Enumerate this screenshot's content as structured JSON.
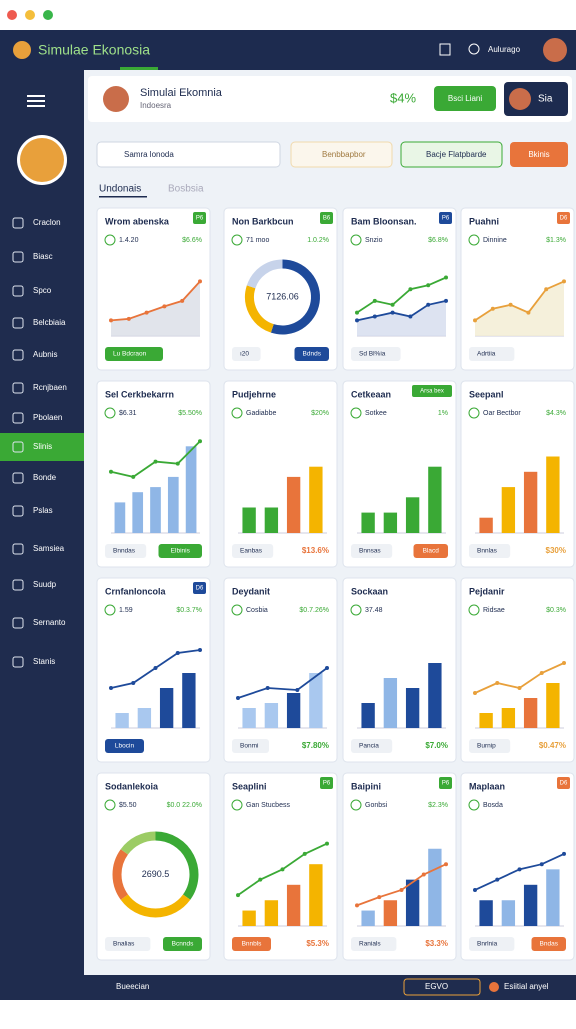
{
  "window": {
    "title": "Simulae Ekonosia",
    "user": "Aulurago"
  },
  "sidebar": {
    "items": [
      "Craclon",
      "Biasc",
      "Spco",
      "Belcbiaia",
      "Aubnis",
      "Rcnjbaen",
      "Pbolaen",
      "Slinis",
      "Bonde",
      "Pslas",
      "Samsiea",
      "Suudp",
      "Sernanto",
      "Stanis"
    ],
    "active": 7
  },
  "header": {
    "title": "Simulai Ekomnia",
    "subtitle": "Indoesra",
    "stat": "$4%",
    "button": "Bsci Liani",
    "user": "Sia"
  },
  "toolbar": {
    "search": "Samra lonoda",
    "filter": "Benbbapbor",
    "action": "Bacje Flatpbarde",
    "action2": "Bkinis"
  },
  "tabs": [
    "Undonais",
    "Bosbsia"
  ],
  "cards": [
    {
      "title": "Wrom abenska",
      "badge": "P6",
      "badge_color": "#3aa935",
      "stat": "1.4.20",
      "stat2": "$6.6%",
      "chart": {
        "ylim": [
          0,
          100
        ],
        "series": [
          {
            "type": "line",
            "color": "#e8743b",
            "area": "#d9dde6",
            "values": [
              20,
              22,
              30,
              38,
              45,
              70
            ]
          }
        ]
      },
      "tag": "Lu Bdcraon",
      "tag_color": "#3aa935"
    },
    {
      "title": "Non Barkbcun",
      "badge": "B6",
      "badge_color": "#3aa935",
      "stat": "71 moo",
      "stat2": "1.0.2%",
      "chart": {
        "type": "donut",
        "center": "7126.06",
        "values": [
          55,
          25,
          20
        ],
        "colors": [
          "#1e4a9a",
          "#f4b400",
          "#c7d3ea"
        ]
      },
      "tag": "ı20",
      "button": "Bdnds",
      "button_color": "#1e4a9a"
    },
    {
      "title": "Bam Bloonsan.",
      "badge": "P6",
      "badge_color": "#1e4a9a",
      "stat": "Snzio",
      "stat2": "$6.8%",
      "chart": {
        "ylim": [
          0,
          100
        ],
        "series": [
          {
            "type": "line",
            "color": "#3aa935",
            "values": [
              30,
              45,
              40,
              60,
              65,
              75
            ]
          },
          {
            "type": "line",
            "color": "#1e4a9a",
            "area": "#d5dcee",
            "values": [
              20,
              25,
              30,
              25,
              40,
              45
            ]
          }
        ]
      },
      "tag": "Sd Bl%ia"
    },
    {
      "title": "Puahni",
      "badge": "D6",
      "badge_color": "#e8743b",
      "stat": "Dinnine",
      "stat2": "$1.3%",
      "chart": {
        "ylim": [
          0,
          100
        ],
        "series": [
          {
            "type": "line",
            "color": "#e8a03b",
            "area": "#f3ecd2",
            "values": [
              20,
              35,
              40,
              30,
              60,
              70
            ]
          }
        ]
      },
      "tag": "Adrtiia"
    },
    {
      "title": "Sel Cerkbekarrn",
      "stat": "$6.31",
      "stat2": "$5.50%",
      "chart": {
        "ylim": [
          0,
          100
        ],
        "series": [
          {
            "type": "bar",
            "colors": [
              "#8fb6e6",
              "#8fb6e6",
              "#8fb6e6",
              "#8fb6e6",
              "#8fb6e6"
            ],
            "values": [
              30,
              40,
              45,
              55,
              85
            ]
          },
          {
            "type": "line",
            "color": "#3aa935",
            "values": [
              60,
              55,
              70,
              68,
              90
            ]
          }
        ]
      },
      "tag": "Bnndas",
      "button": "Elbinis",
      "button_color": "#3aa935"
    },
    {
      "title": "Pudjehrne",
      "stat": "Gadiabbe",
      "stat2": "$20%",
      "chart": {
        "ylim": [
          0,
          100
        ],
        "series": [
          {
            "type": "bar",
            "colors": [
              "#3aa935",
              "#3aa935",
              "#e8743b",
              "#f4b400"
            ],
            "values": [
              25,
              25,
              55,
              65
            ]
          }
        ]
      },
      "tag": "Eanbas",
      "note": "$13.6%",
      "note_color": "#e8743b"
    },
    {
      "title": "Cetkeaan",
      "badge": "Arsa bex",
      "badge_color": "#3aa935",
      "stat": "Sotkee",
      "stat2": "1%",
      "chart": {
        "ylim": [
          0,
          100
        ],
        "series": [
          {
            "type": "bar",
            "colors": [
              "#3aa935",
              "#3aa935",
              "#3aa935",
              "#3aa935"
            ],
            "values": [
              20,
              20,
              35,
              65
            ]
          }
        ]
      },
      "tag": "Bnnsas",
      "button": "Blacd",
      "button_color": "#e8743b"
    },
    {
      "title": "Seepanl",
      "stat": "Oar Bectbor",
      "stat2": "$4.3%",
      "chart": {
        "ylim": [
          0,
          100
        ],
        "series": [
          {
            "type": "bar",
            "colors": [
              "#e8743b",
              "#f4b400",
              "#e8743b",
              "#f4b400"
            ],
            "values": [
              15,
              45,
              60,
              75
            ]
          }
        ]
      },
      "tag": "Bnnlas",
      "note": "$30%",
      "note_color": "#e8a03b"
    },
    {
      "title": "Crnfanloncola",
      "badge": "D6",
      "badge_color": "#1e4a9a",
      "stat": "1.59",
      "stat2": "$0.3.7%",
      "chart": {
        "ylim": [
          0,
          100
        ],
        "series": [
          {
            "type": "bar",
            "colors": [
              "#a9c8ef",
              "#a9c8ef",
              "#1e4a9a",
              "#1e4a9a"
            ],
            "values": [
              15,
              20,
              40,
              55
            ]
          },
          {
            "type": "line",
            "color": "#1e4a9a",
            "values": [
              40,
              45,
              60,
              75,
              78
            ]
          }
        ]
      },
      "button": "Lbocin",
      "button_color": "#1e4a9a"
    },
    {
      "title": "Deydanit",
      "stat": "Cosbia",
      "stat2": "$0.7.26%",
      "chart": {
        "ylim": [
          0,
          100
        ],
        "series": [
          {
            "type": "bar",
            "colors": [
              "#a9c8ef",
              "#a9c8ef",
              "#1e4a9a",
              "#a9c8ef"
            ],
            "values": [
              20,
              25,
              35,
              55
            ]
          },
          {
            "type": "line",
            "color": "#1e4a9a",
            "values": [
              30,
              40,
              38,
              60
            ]
          }
        ]
      },
      "tag": "Bonmi",
      "note": "$7.80%",
      "note_color": "#3aa935"
    },
    {
      "title": "Sockaan",
      "stat": "37.48",
      "chart": {
        "ylim": [
          0,
          100
        ],
        "series": [
          {
            "type": "bar",
            "colors": [
              "#1e4a9a",
              "#8fb6e6",
              "#1e4a9a",
              "#1e4a9a"
            ],
            "values": [
              25,
              50,
              40,
              65
            ]
          }
        ]
      },
      "tag": "Pancia",
      "note": "$7.0%",
      "note_color": "#3aa935"
    },
    {
      "title": "Pejdanir",
      "stat": "Ridsae",
      "stat2": "$0.3%",
      "chart": {
        "ylim": [
          0,
          100
        ],
        "series": [
          {
            "type": "bar",
            "colors": [
              "#f4b400",
              "#f4b400",
              "#e8743b",
              "#f4b400"
            ],
            "values": [
              15,
              20,
              30,
              45
            ]
          },
          {
            "type": "line",
            "color": "#e8a03b",
            "values": [
              35,
              45,
              40,
              55,
              65
            ]
          }
        ]
      },
      "tag": "Burnip",
      "note": "$0.47%",
      "note_color": "#e8a03b"
    },
    {
      "title": "Sodanlekoia",
      "stat": "$5.50",
      "stat2": "$0.0 22.0%",
      "chart": {
        "type": "donut",
        "center": "2690.5",
        "values": [
          35,
          30,
          20,
          15
        ],
        "colors": [
          "#3aa935",
          "#f4b400",
          "#e8743b",
          "#9ccc65"
        ]
      },
      "tag": "Bnalias",
      "button": "Bcnnds",
      "button_color": "#3aa935"
    },
    {
      "title": "Seaplini",
      "badge": "P6",
      "badge_color": "#3aa935",
      "stat": "Gan Stucbess",
      "chart": {
        "ylim": [
          0,
          100
        ],
        "series": [
          {
            "type": "bar",
            "colors": [
              "#f4b400",
              "#f4b400",
              "#e8743b",
              "#f4b400"
            ],
            "values": [
              15,
              25,
              40,
              60
            ]
          },
          {
            "type": "line",
            "color": "#3aa935",
            "values": [
              30,
              45,
              55,
              70,
              80
            ]
          }
        ]
      },
      "button": "Bnnbls",
      "button_color": "#e8743b",
      "note": "$5.3%",
      "note_color": "#e8743b"
    },
    {
      "title": "Baipini",
      "badge": "P6",
      "badge_color": "#3aa935",
      "stat": "Gonbsi",
      "stat2": "$2.3%",
      "chart": {
        "ylim": [
          0,
          100
        ],
        "series": [
          {
            "type": "bar",
            "colors": [
              "#8fb6e6",
              "#e8743b",
              "#1e4a9a",
              "#8fb6e6"
            ],
            "values": [
              15,
              25,
              45,
              75
            ]
          },
          {
            "type": "line",
            "color": "#e8743b",
            "values": [
              20,
              28,
              35,
              50,
              60
            ]
          }
        ]
      },
      "tag": "Ranials",
      "note": "$3.3%",
      "note_color": "#e8743b"
    },
    {
      "title": "Maplaan",
      "badge": "D6",
      "badge_color": "#e8743b",
      "stat": "Bosda",
      "chart": {
        "ylim": [
          0,
          100
        ],
        "series": [
          {
            "type": "bar",
            "colors": [
              "#1e4a9a",
              "#8fb6e6",
              "#1e4a9a",
              "#8fb6e6"
            ],
            "values": [
              25,
              25,
              40,
              55
            ]
          },
          {
            "type": "line",
            "color": "#1e4a9a",
            "values": [
              35,
              45,
              55,
              60,
              70
            ]
          }
        ]
      },
      "tag": "Bnrlnia",
      "button": "Bndas",
      "button_color": "#e8743b"
    }
  ],
  "footer": {
    "left": "Bueecian",
    "mid": "EGVO",
    "right": "Esiitial anyel"
  }
}
